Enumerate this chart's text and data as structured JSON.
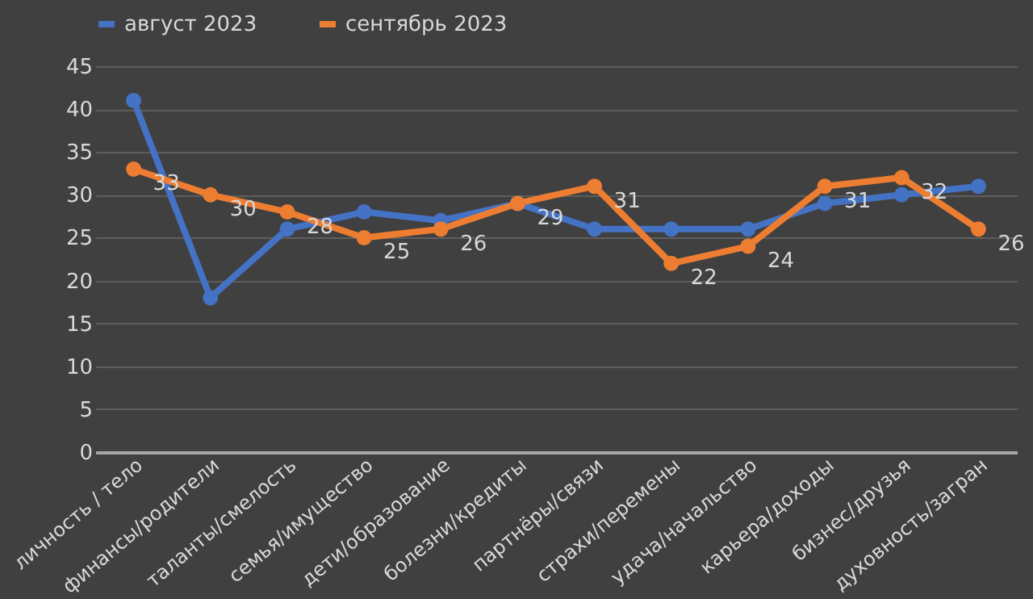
{
  "chart_data": {
    "type": "line",
    "categories": [
      "личность / тело",
      "финансы/родители",
      "таланты/смелость",
      "семья/имущество",
      "дети/образование",
      "болезни/кредиты",
      "партнёры/связи",
      "страхи/перемены",
      "удача/начальство",
      "карьера/доходы",
      "бизнес/друзья",
      "духовность/загран"
    ],
    "series": [
      {
        "name": "август 2023",
        "color": "#4472c4",
        "values": [
          41,
          18,
          26,
          28,
          27,
          29,
          26,
          26,
          26,
          29,
          30,
          31
        ]
      },
      {
        "name": "сентябрь 2023",
        "color": "#ed7d31",
        "values": [
          33,
          30,
          28,
          25,
          26,
          29,
          31,
          22,
          24,
          31,
          32,
          26
        ],
        "value_labels": [
          "33",
          "30",
          "28",
          "25",
          "26",
          "29",
          "31",
          "22",
          "24",
          "31",
          "32",
          "26"
        ]
      }
    ],
    "ylim": [
      0,
      45
    ],
    "yticks": [
      0,
      5,
      10,
      15,
      20,
      25,
      30,
      35,
      40,
      45
    ],
    "grid": "y",
    "legend": "top",
    "marker": "circle",
    "line_style": "solid"
  }
}
